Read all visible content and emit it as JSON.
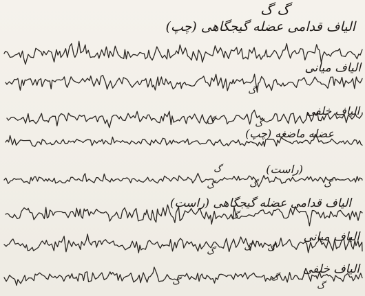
{
  "sheet": {
    "heading_mark": "گ گ",
    "labels": [
      "الیاف قدامی عضله گیجگاهی (چپ)",
      "الیاف میانی",
      "الیاف خلفی",
      "عضله ماضغه (چپ)",
      "(راست)",
      "الیاف قدامی عضله گیجگاهی (راست)",
      "الیاف میانی",
      "الیاف خلفی"
    ],
    "marks": [
      "گ",
      "گ",
      "گ",
      "گ",
      "گ",
      "گ",
      "گ",
      "گ",
      "گ",
      "گ",
      "گ",
      "گ",
      "گ",
      "گ"
    ]
  },
  "traces": [
    {
      "name": "left-anterior-temporalis",
      "amplitude": 0.9
    },
    {
      "name": "left-middle-temporalis",
      "amplitude": 0.85
    },
    {
      "name": "left-posterior-temporalis",
      "amplitude": 0.75
    },
    {
      "name": "left-masseter",
      "amplitude": 0.35
    },
    {
      "name": "right-masseter",
      "amplitude": 0.3
    },
    {
      "name": "right-anterior-temporalis",
      "amplitude": 0.8
    },
    {
      "name": "right-middle-temporalis",
      "amplitude": 0.8
    },
    {
      "name": "right-posterior-temporalis",
      "amplitude": 0.55
    }
  ]
}
